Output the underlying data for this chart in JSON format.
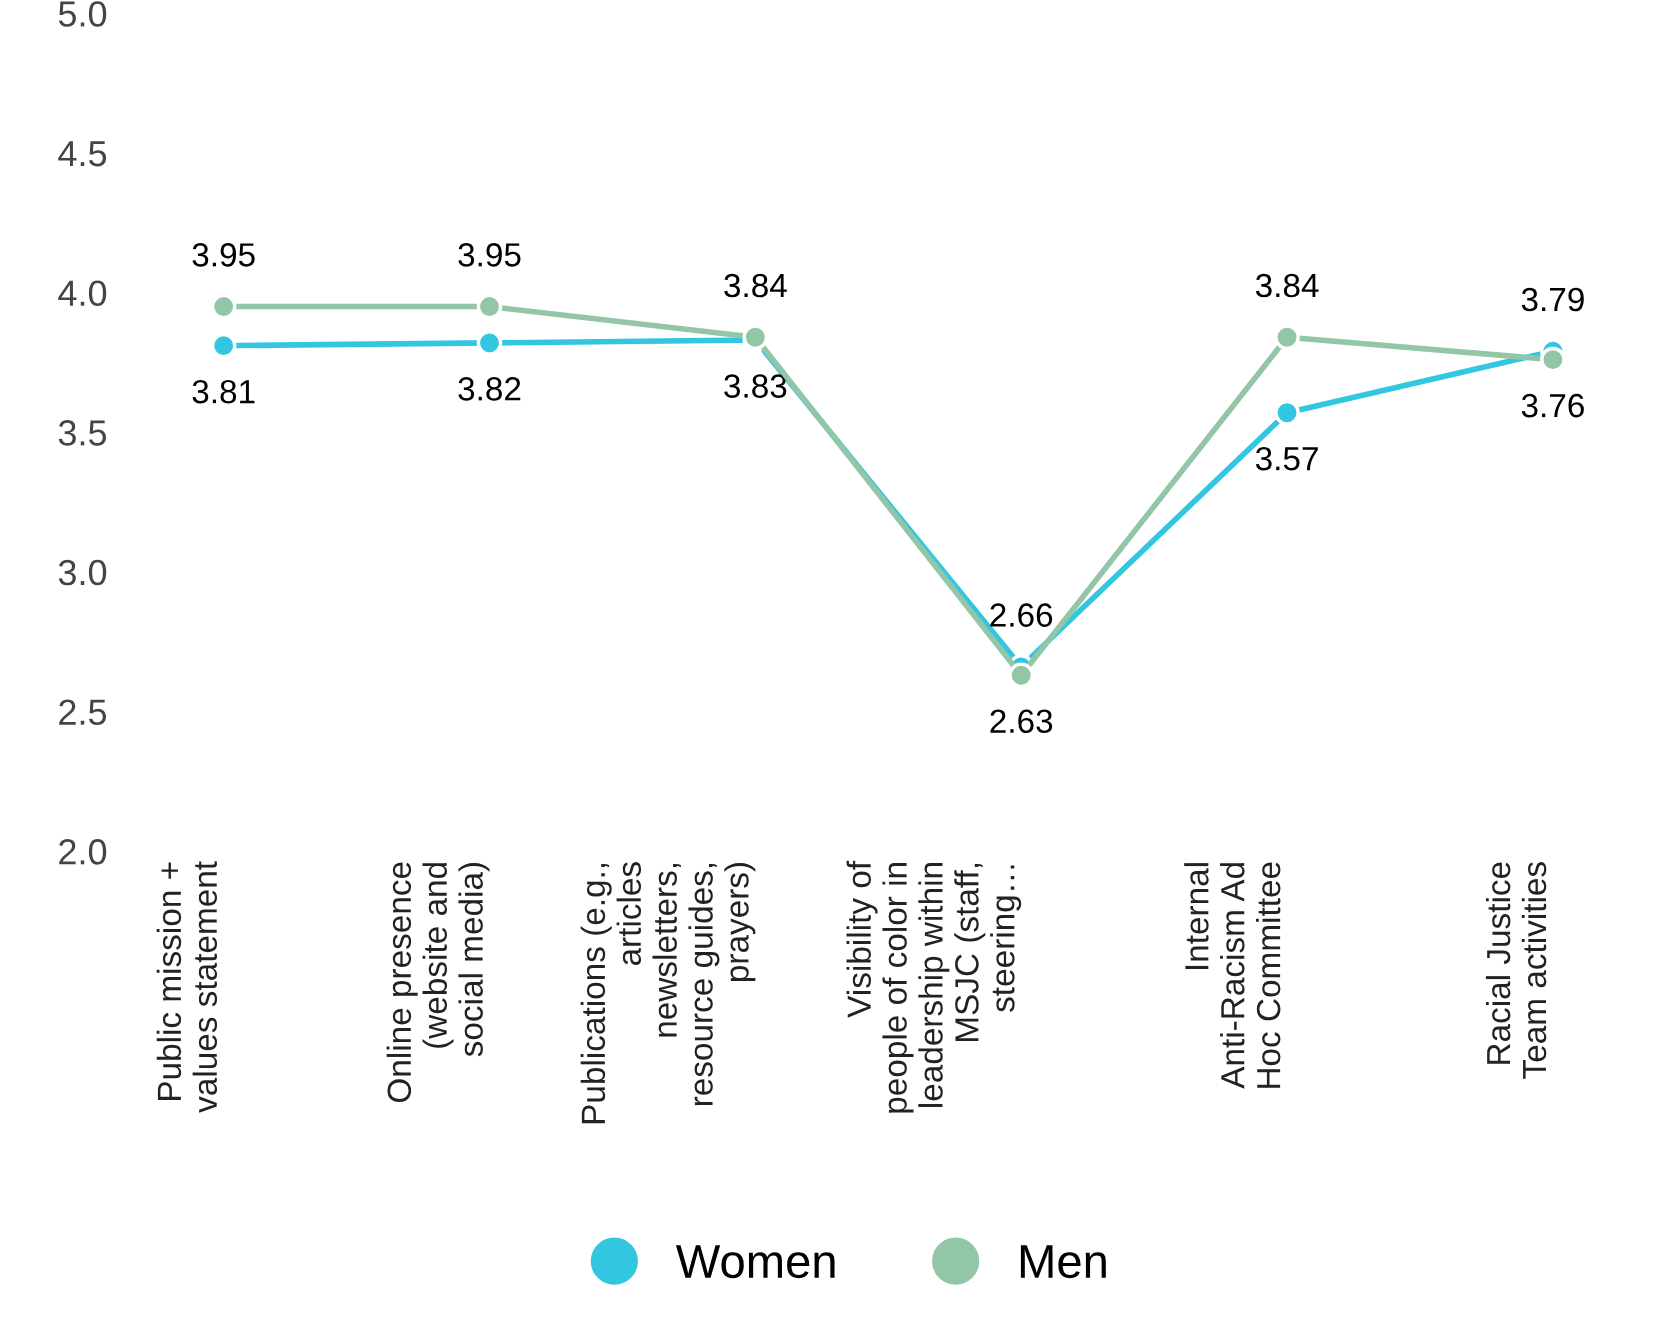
{
  "chart_data": {
    "type": "line",
    "categories": [
      "Public mission +\nvalues statement",
      "Online presence\n(website and\nsocial media)",
      "Publications (e.g.,\narticles\nnewsletters,\nresource guides,\nprayers)",
      "Visibility of\npeople of color in\nleadership within\nMSJC (staff,\nsteering…",
      "Internal\nAnti-Racism Ad\nHoc Committee",
      "Racial Justice\nTeam activities"
    ],
    "series": [
      {
        "name": "Women",
        "color": "#33c6e0",
        "values": [
          3.81,
          3.82,
          3.83,
          2.66,
          3.57,
          3.79
        ]
      },
      {
        "name": "Men",
        "color": "#92c6a6",
        "values": [
          3.95,
          3.95,
          3.84,
          2.63,
          3.84,
          3.76
        ]
      }
    ],
    "ylim": [
      2.0,
      5.0
    ],
    "yticks": [
      {
        "value": 2.0,
        "label": "2.0"
      },
      {
        "value": 2.5,
        "label": "2.5"
      },
      {
        "value": 3.0,
        "label": "3.0"
      },
      {
        "value": 3.5,
        "label": "3.5"
      },
      {
        "value": 4.0,
        "label": "4.0"
      },
      {
        "value": 4.5,
        "label": "4.5"
      },
      {
        "value": 5.0,
        "label": "5.0"
      }
    ],
    "grid": false,
    "legend": "bottom",
    "marker": "circle",
    "line_style": "solid",
    "data_labels": true
  }
}
